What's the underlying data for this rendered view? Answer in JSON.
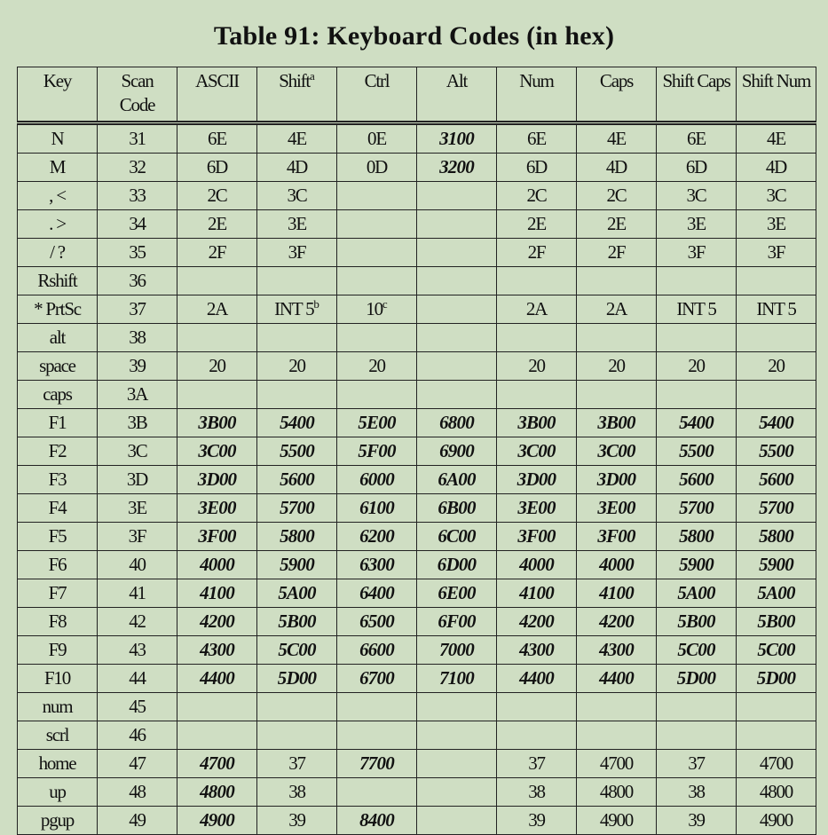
{
  "title": "Table 91: Keyboard Codes (in hex)",
  "headers": [
    {
      "t": "Key"
    },
    {
      "t": "Scan Code"
    },
    {
      "t": "ASCII"
    },
    {
      "t": "Shift",
      "sup": "a"
    },
    {
      "t": "Ctrl"
    },
    {
      "t": "Alt"
    },
    {
      "t": "Num"
    },
    {
      "t": "Caps"
    },
    {
      "t": "Shift Caps"
    },
    {
      "t": "Shift Num"
    }
  ],
  "rows": [
    {
      "cells": [
        "N",
        "31",
        "6E",
        "4E",
        "0E",
        "3100",
        "6E",
        "4E",
        "6E",
        "4E"
      ],
      "emphasis": [
        5
      ]
    },
    {
      "cells": [
        "M",
        "32",
        "6D",
        "4D",
        "0D",
        "3200",
        "6D",
        "4D",
        "6D",
        "4D"
      ],
      "emphasis": [
        5
      ]
    },
    {
      "cells": [
        ", <",
        "33",
        "2C",
        "3C",
        "",
        "",
        "2C",
        "2C",
        "3C",
        "3C"
      ],
      "emphasis": []
    },
    {
      "cells": [
        ". >",
        "34",
        "2E",
        "3E",
        "",
        "",
        "2E",
        "2E",
        "3E",
        "3E"
      ],
      "emphasis": []
    },
    {
      "cells": [
        "/ ?",
        "35",
        "2F",
        "3F",
        "",
        "",
        "2F",
        "2F",
        "3F",
        "3F"
      ],
      "emphasis": []
    },
    {
      "cells": [
        "Rshift",
        "36",
        "",
        "",
        "",
        "",
        "",
        "",
        "",
        ""
      ],
      "emphasis": []
    },
    {
      "cells": [
        "* PrtSc",
        "37",
        "2A",
        {
          "t": "INT 5",
          "sup": "b"
        },
        {
          "t": "10",
          "sup": "c"
        },
        "",
        "2A",
        "2A",
        "INT 5",
        "INT 5"
      ],
      "emphasis": []
    },
    {
      "cells": [
        "alt",
        "38",
        "",
        "",
        "",
        "",
        "",
        "",
        "",
        ""
      ],
      "emphasis": []
    },
    {
      "cells": [
        "space",
        "39",
        "20",
        "20",
        "20",
        "",
        "20",
        "20",
        "20",
        "20"
      ],
      "emphasis": []
    },
    {
      "cells": [
        "caps",
        "3A",
        "",
        "",
        "",
        "",
        "",
        "",
        "",
        ""
      ],
      "emphasis": []
    },
    {
      "cells": [
        "F1",
        "3B",
        "3B00",
        "5400",
        "5E00",
        "6800",
        "3B00",
        "3B00",
        "5400",
        "5400"
      ],
      "emphasis": [
        2,
        3,
        4,
        5,
        6,
        7,
        8,
        9
      ]
    },
    {
      "cells": [
        "F2",
        "3C",
        "3C00",
        "5500",
        "5F00",
        "6900",
        "3C00",
        "3C00",
        "5500",
        "5500"
      ],
      "emphasis": [
        2,
        3,
        4,
        5,
        6,
        7,
        8,
        9
      ]
    },
    {
      "cells": [
        "F3",
        "3D",
        "3D00",
        "5600",
        "6000",
        "6A00",
        "3D00",
        "3D00",
        "5600",
        "5600"
      ],
      "emphasis": [
        2,
        3,
        4,
        5,
        6,
        7,
        8,
        9
      ]
    },
    {
      "cells": [
        "F4",
        "3E",
        "3E00",
        "5700",
        "6100",
        "6B00",
        "3E00",
        "3E00",
        "5700",
        "5700"
      ],
      "emphasis": [
        2,
        3,
        4,
        5,
        6,
        7,
        8,
        9
      ]
    },
    {
      "cells": [
        "F5",
        "3F",
        "3F00",
        "5800",
        "6200",
        "6C00",
        "3F00",
        "3F00",
        "5800",
        "5800"
      ],
      "emphasis": [
        2,
        3,
        4,
        5,
        6,
        7,
        8,
        9
      ]
    },
    {
      "cells": [
        "F6",
        "40",
        "4000",
        "5900",
        "6300",
        "6D00",
        "4000",
        "4000",
        "5900",
        "5900"
      ],
      "emphasis": [
        2,
        3,
        4,
        5,
        6,
        7,
        8,
        9
      ]
    },
    {
      "cells": [
        "F7",
        "41",
        "4100",
        "5A00",
        "6400",
        "6E00",
        "4100",
        "4100",
        "5A00",
        "5A00"
      ],
      "emphasis": [
        2,
        3,
        4,
        5,
        6,
        7,
        8,
        9
      ]
    },
    {
      "cells": [
        "F8",
        "42",
        "4200",
        "5B00",
        "6500",
        "6F00",
        "4200",
        "4200",
        "5B00",
        "5B00"
      ],
      "emphasis": [
        2,
        3,
        4,
        5,
        6,
        7,
        8,
        9
      ]
    },
    {
      "cells": [
        "F9",
        "43",
        "4300",
        "5C00",
        "6600",
        "7000",
        "4300",
        "4300",
        "5C00",
        "5C00"
      ],
      "emphasis": [
        2,
        3,
        4,
        5,
        6,
        7,
        8,
        9
      ]
    },
    {
      "cells": [
        "F10",
        "44",
        "4400",
        "5D00",
        "6700",
        "7100",
        "4400",
        "4400",
        "5D00",
        "5D00"
      ],
      "emphasis": [
        2,
        3,
        4,
        5,
        6,
        7,
        8,
        9
      ]
    },
    {
      "cells": [
        "num",
        "45",
        "",
        "",
        "",
        "",
        "",
        "",
        "",
        ""
      ],
      "emphasis": []
    },
    {
      "cells": [
        "scrl",
        "46",
        "",
        "",
        "",
        "",
        "",
        "",
        "",
        ""
      ],
      "emphasis": []
    },
    {
      "cells": [
        "home",
        "47",
        "4700",
        "37",
        "7700",
        "",
        "37",
        "4700",
        "37",
        "4700"
      ],
      "emphasis": [
        2,
        4
      ]
    },
    {
      "cells": [
        "up",
        "48",
        "4800",
        "38",
        "",
        "",
        "38",
        "4800",
        "38",
        "4800"
      ],
      "emphasis": [
        2
      ]
    },
    {
      "cells": [
        "pgup",
        "49",
        "4900",
        "39",
        "8400",
        "",
        "39",
        "4900",
        "39",
        "4900"
      ],
      "emphasis": [
        2,
        4
      ]
    }
  ]
}
